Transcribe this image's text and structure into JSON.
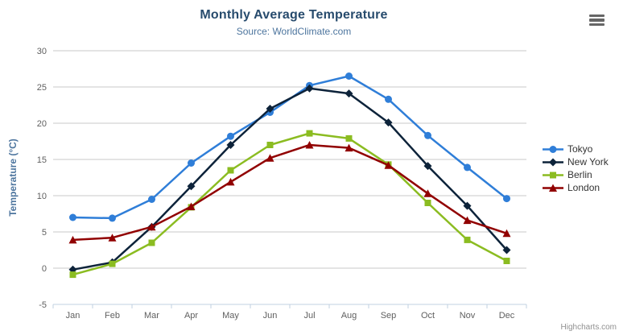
{
  "chart_data": {
    "type": "line",
    "title": "Monthly Average Temperature",
    "subtitle": "Source: WorldClimate.com",
    "xlabel": "",
    "ylabel": "Temperature (°C)",
    "ylim": [
      -5,
      30
    ],
    "y_tick_interval": 5,
    "grid": true,
    "legend_position": "right",
    "categories": [
      "Jan",
      "Feb",
      "Mar",
      "Apr",
      "May",
      "Jun",
      "Jul",
      "Aug",
      "Sep",
      "Oct",
      "Nov",
      "Dec"
    ],
    "series": [
      {
        "name": "Tokyo",
        "color": "#2f7ed8",
        "marker": "circle",
        "values": [
          7.0,
          6.9,
          9.5,
          14.5,
          18.2,
          21.5,
          25.2,
          26.5,
          23.3,
          18.3,
          13.9,
          9.6
        ]
      },
      {
        "name": "New York",
        "color": "#0d233a",
        "marker": "diamond",
        "values": [
          -0.2,
          0.8,
          5.7,
          11.3,
          17.0,
          22.0,
          24.8,
          24.1,
          20.1,
          14.1,
          8.6,
          2.5
        ]
      },
      {
        "name": "Berlin",
        "color": "#8bbc21",
        "marker": "square",
        "values": [
          -0.9,
          0.6,
          3.5,
          8.4,
          13.5,
          17.0,
          18.6,
          17.9,
          14.3,
          9.0,
          3.9,
          1.0
        ]
      },
      {
        "name": "London",
        "color": "#910000",
        "marker": "triangle",
        "values": [
          3.9,
          4.2,
          5.7,
          8.5,
          11.9,
          15.2,
          17.0,
          16.6,
          14.2,
          10.3,
          6.6,
          4.8
        ]
      }
    ]
  },
  "credits": {
    "text": "Highcharts.com"
  },
  "export_menu": {
    "icon": "hamburger-icon"
  },
  "colors": {
    "title": "#274b6d",
    "subtitle": "#4d759e",
    "axis_title": "#4d759e",
    "tick_label": "#606060",
    "grid_line": "#c8c8c8",
    "axis_line": "#c0d0e0",
    "legend_text": "#333333",
    "credits_text": "#909090",
    "menu_bars": "#666666"
  }
}
